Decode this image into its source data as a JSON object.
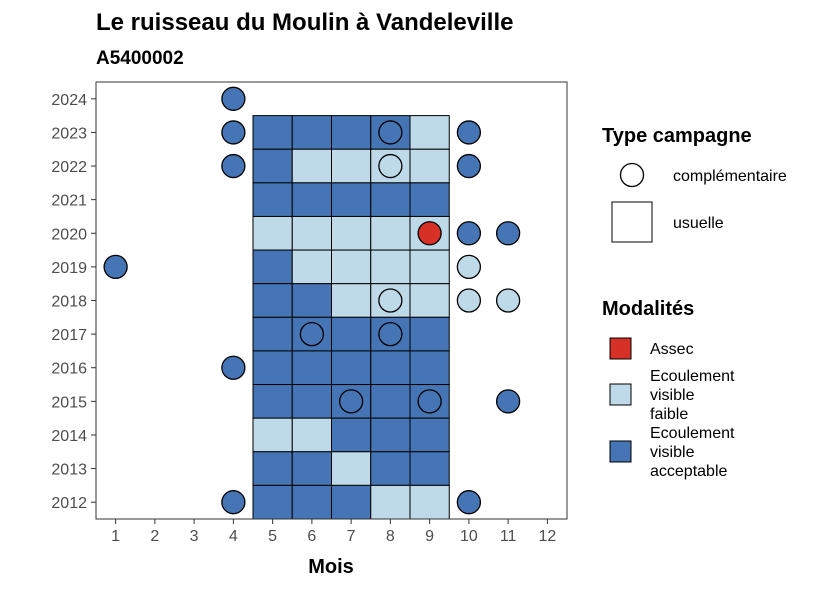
{
  "chart_data": {
    "type": "heatmap",
    "title": "Le ruisseau du Moulin à Vandeleville",
    "subtitle": "A5400002",
    "xlabel": "Mois",
    "ylabel": "",
    "x_ticks": [
      1,
      2,
      3,
      4,
      5,
      6,
      7,
      8,
      9,
      10,
      11,
      12
    ],
    "y_ticks": [
      2012,
      2013,
      2014,
      2015,
      2016,
      2017,
      2018,
      2019,
      2020,
      2021,
      2022,
      2023,
      2024
    ],
    "xlim": [
      0.5,
      12.5
    ],
    "ylim": [
      2011.5,
      2024.5
    ],
    "grid": false,
    "colors": {
      "assec": "#d73027",
      "faible": "#bed9e8",
      "acceptable": "#4575b4"
    },
    "legend_shape": {
      "title": "Type campagne",
      "entries": [
        {
          "key": "complementaire",
          "label": "complémentaire"
        },
        {
          "key": "usuelle",
          "label": "usuelle"
        }
      ]
    },
    "legend_fill": {
      "title": "Modalités",
      "entries": [
        {
          "key": "assec",
          "lines": [
            "Assec"
          ]
        },
        {
          "key": "faible",
          "lines": [
            "Ecoulement",
            "visible",
            "faible"
          ]
        },
        {
          "key": "acceptable",
          "lines": [
            "Ecoulement",
            "visible",
            "acceptable"
          ]
        }
      ]
    },
    "usuelle": [
      {
        "year": 2023,
        "values": [
          [
            "acceptable",
            5
          ],
          [
            "acceptable",
            6
          ],
          [
            "acceptable",
            7
          ],
          [
            "acceptable",
            8
          ],
          [
            "faible",
            9
          ]
        ]
      },
      {
        "year": 2022,
        "values": [
          [
            "acceptable",
            5
          ],
          [
            "faible",
            6
          ],
          [
            "faible",
            7
          ],
          [
            "faible",
            8
          ],
          [
            "faible",
            9
          ]
        ]
      },
      {
        "year": 2021,
        "values": [
          [
            "acceptable",
            5
          ],
          [
            "acceptable",
            6
          ],
          [
            "acceptable",
            7
          ],
          [
            "acceptable",
            8
          ],
          [
            "acceptable",
            9
          ]
        ]
      },
      {
        "year": 2020,
        "values": [
          [
            "faible",
            5
          ],
          [
            "faible",
            6
          ],
          [
            "faible",
            7
          ],
          [
            "faible",
            8
          ],
          [
            "faible",
            9
          ]
        ]
      },
      {
        "year": 2019,
        "values": [
          [
            "acceptable",
            5
          ],
          [
            "faible",
            6
          ],
          [
            "faible",
            7
          ],
          [
            "faible",
            8
          ],
          [
            "faible",
            9
          ]
        ]
      },
      {
        "year": 2018,
        "values": [
          [
            "acceptable",
            5
          ],
          [
            "acceptable",
            6
          ],
          [
            "faible",
            7
          ],
          [
            "faible",
            8
          ],
          [
            "faible",
            9
          ]
        ]
      },
      {
        "year": 2017,
        "values": [
          [
            "acceptable",
            5
          ],
          [
            "acceptable",
            6
          ],
          [
            "acceptable",
            7
          ],
          [
            "acceptable",
            8
          ],
          [
            "acceptable",
            9
          ]
        ]
      },
      {
        "year": 2016,
        "values": [
          [
            "acceptable",
            5
          ],
          [
            "acceptable",
            6
          ],
          [
            "acceptable",
            7
          ],
          [
            "acceptable",
            8
          ],
          [
            "acceptable",
            9
          ]
        ]
      },
      {
        "year": 2015,
        "values": [
          [
            "acceptable",
            5
          ],
          [
            "acceptable",
            6
          ],
          [
            "acceptable",
            7
          ],
          [
            "acceptable",
            8
          ],
          [
            "acceptable",
            9
          ]
        ]
      },
      {
        "year": 2014,
        "values": [
          [
            "faible",
            5
          ],
          [
            "faible",
            6
          ],
          [
            "acceptable",
            7
          ],
          [
            "acceptable",
            8
          ],
          [
            "acceptable",
            9
          ]
        ]
      },
      {
        "year": 2013,
        "values": [
          [
            "acceptable",
            5
          ],
          [
            "acceptable",
            6
          ],
          [
            "faible",
            7
          ],
          [
            "acceptable",
            8
          ],
          [
            "acceptable",
            9
          ]
        ]
      },
      {
        "year": 2012,
        "values": [
          [
            "acceptable",
            5
          ],
          [
            "acceptable",
            6
          ],
          [
            "acceptable",
            7
          ],
          [
            "faible",
            8
          ],
          [
            "faible",
            9
          ]
        ]
      }
    ],
    "complementaire": [
      {
        "year": 2024,
        "month": 4,
        "value": "acceptable"
      },
      {
        "year": 2023,
        "month": 4,
        "value": "acceptable"
      },
      {
        "year": 2023,
        "month": 8,
        "value": "acceptable"
      },
      {
        "year": 2023,
        "month": 10,
        "value": "acceptable"
      },
      {
        "year": 2022,
        "month": 4,
        "value": "acceptable"
      },
      {
        "year": 2022,
        "month": 8,
        "value": "faible"
      },
      {
        "year": 2022,
        "month": 10,
        "value": "acceptable"
      },
      {
        "year": 2020,
        "month": 9,
        "value": "assec"
      },
      {
        "year": 2020,
        "month": 10,
        "value": "acceptable"
      },
      {
        "year": 2020,
        "month": 11,
        "value": "acceptable"
      },
      {
        "year": 2019,
        "month": 1,
        "value": "acceptable"
      },
      {
        "year": 2019,
        "month": 10,
        "value": "faible"
      },
      {
        "year": 2018,
        "month": 8,
        "value": "faible"
      },
      {
        "year": 2018,
        "month": 10,
        "value": "faible"
      },
      {
        "year": 2018,
        "month": 11,
        "value": "faible"
      },
      {
        "year": 2017,
        "month": 6,
        "value": "acceptable"
      },
      {
        "year": 2017,
        "month": 8,
        "value": "acceptable"
      },
      {
        "year": 2016,
        "month": 4,
        "value": "acceptable"
      },
      {
        "year": 2015,
        "month": 7,
        "value": "acceptable"
      },
      {
        "year": 2015,
        "month": 9,
        "value": "acceptable"
      },
      {
        "year": 2015,
        "month": 11,
        "value": "acceptable"
      },
      {
        "year": 2012,
        "month": 4,
        "value": "acceptable"
      },
      {
        "year": 2012,
        "month": 10,
        "value": "acceptable"
      }
    ]
  }
}
